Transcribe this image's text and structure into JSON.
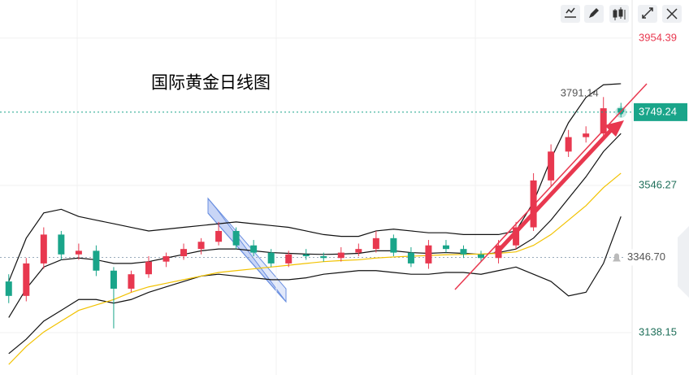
{
  "chart_data": {
    "type": "candlestick",
    "title": "国际黄金日线图",
    "open": [
      3280,
      3240,
      3330,
      3410,
      3355,
      3365,
      3310,
      3260,
      3300,
      3335,
      3350,
      3370,
      3390,
      3420,
      3380,
      3360,
      3330,
      3355,
      3350,
      3345,
      3360,
      3370,
      3400,
      3360,
      3330,
      3380,
      3370,
      3355,
      3345,
      3380,
      3430,
      3560,
      3640,
      3680,
      3690,
      3760
    ],
    "high": [
      3300,
      3345,
      3430,
      3420,
      3385,
      3380,
      3320,
      3310,
      3350,
      3360,
      3385,
      3400,
      3445,
      3430,
      3395,
      3370,
      3365,
      3370,
      3360,
      3375,
      3385,
      3420,
      3410,
      3375,
      3395,
      3395,
      3380,
      3365,
      3395,
      3445,
      3580,
      3660,
      3700,
      3710,
      3791.14,
      3775
    ],
    "low": [
      3220,
      3225,
      3315,
      3340,
      3340,
      3295,
      3150,
      3250,
      3290,
      3320,
      3340,
      3355,
      3380,
      3370,
      3350,
      3320,
      3320,
      3340,
      3335,
      3335,
      3350,
      3360,
      3350,
      3320,
      3315,
      3360,
      3345,
      3335,
      3330,
      3370,
      3420,
      3545,
      3625,
      3665,
      3680,
      3735
    ],
    "close": [
      3240,
      3330,
      3410,
      3355,
      3365,
      3310,
      3260,
      3300,
      3335,
      3350,
      3370,
      3390,
      3420,
      3380,
      3360,
      3330,
      3355,
      3350,
      3345,
      3360,
      3370,
      3400,
      3360,
      3330,
      3380,
      3370,
      3355,
      3345,
      3380,
      3430,
      3560,
      3640,
      3680,
      3690,
      3760,
      3749.24
    ],
    "up_color": "#e8384f",
    "down_color": "#1aa58a",
    "series": [
      {
        "color": "#111111",
        "values": [
          3280,
          3400,
          3470,
          3480,
          3460,
          3450,
          3440,
          3430,
          3420,
          3425,
          3430,
          3435,
          3440,
          3445,
          3440,
          3435,
          3430,
          3420,
          3410,
          3405,
          3405,
          3420,
          3425,
          3420,
          3415,
          3415,
          3410,
          3410,
          3410,
          3420,
          3500,
          3620,
          3720,
          3790,
          3825,
          3828
        ]
      },
      {
        "color": "#111111",
        "values": [
          3180,
          3260,
          3320,
          3340,
          3345,
          3340,
          3330,
          3330,
          3335,
          3345,
          3355,
          3365,
          3370,
          3370,
          3365,
          3360,
          3358,
          3356,
          3355,
          3356,
          3358,
          3365,
          3365,
          3360,
          3358,
          3360,
          3358,
          3355,
          3360,
          3370,
          3400,
          3450,
          3510,
          3570,
          3640,
          3690
        ]
      },
      {
        "color": "#111111",
        "values": [
          3080,
          3120,
          3170,
          3200,
          3230,
          3230,
          3220,
          3230,
          3250,
          3265,
          3280,
          3295,
          3300,
          3295,
          3290,
          3285,
          3285,
          3290,
          3300,
          3305,
          3310,
          3310,
          3305,
          3300,
          3300,
          3305,
          3305,
          3300,
          3310,
          3320,
          3300,
          3280,
          3240,
          3250,
          3330,
          3460
        ]
      },
      {
        "color": "#f2c200",
        "values": [
          3050,
          3100,
          3140,
          3170,
          3200,
          3215,
          3230,
          3250,
          3265,
          3275,
          3285,
          3295,
          3305,
          3310,
          3315,
          3320,
          3325,
          3330,
          3335,
          3338,
          3340,
          3345,
          3348,
          3350,
          3352,
          3354,
          3355,
          3356,
          3358,
          3362,
          3380,
          3410,
          3450,
          3490,
          3540,
          3580
        ]
      }
    ],
    "ylim": [
      3021,
      4060
    ],
    "yticks": [
      3954.39,
      3546.27,
      3138.15
    ],
    "grid": true,
    "high_annotation": 3791.14,
    "last_price_color": "#1aa58a",
    "alert_price": {
      "value": 3346.7,
      "label": "3346.70"
    }
  }
}
